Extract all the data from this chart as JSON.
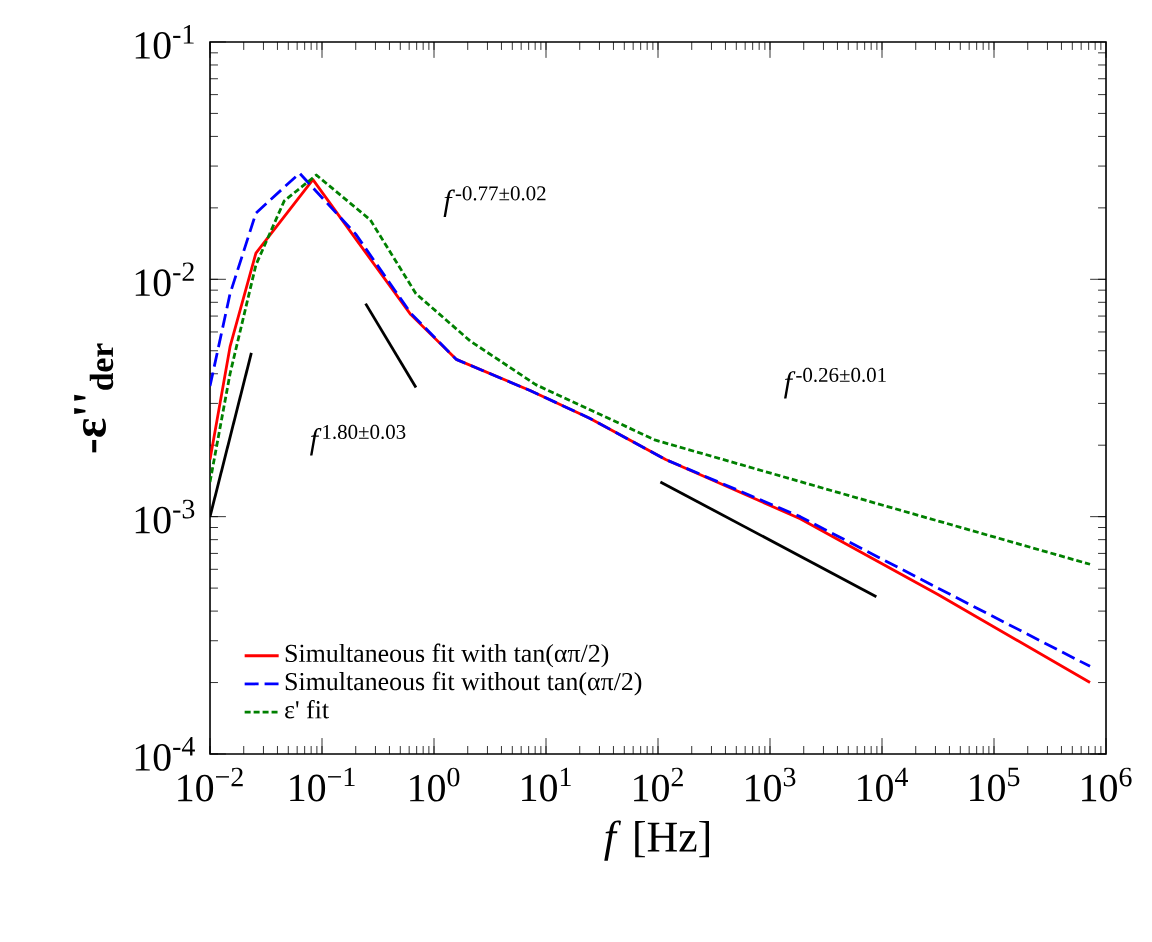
{
  "chart_data": {
    "type": "line",
    "xlabel": "*f* [Hz]",
    "ylabel": "-ε''$_{der}$",
    "log": "xy",
    "xlim": [
      0.01,
      1000000
    ],
    "ylim": [
      0.0001,
      0.1
    ],
    "xticks": [
      {
        "value": 0.01,
        "label": "10$^{−2}$"
      },
      {
        "value": 0.1,
        "label": "10$^{−1}$"
      },
      {
        "value": 1,
        "label": "10$^{0}$"
      },
      {
        "value": 10,
        "label": "10$^{1}$"
      },
      {
        "value": 100,
        "label": "10$^{2}$"
      },
      {
        "value": 1000,
        "label": "10$^{3}$"
      },
      {
        "value": 10000,
        "label": "10$^{4}$"
      },
      {
        "value": 100000,
        "label": "10$^{5}$"
      },
      {
        "value": 1000000,
        "label": "10$^{6}$"
      }
    ],
    "yticks": [
      {
        "value": 0.0001,
        "label": "10$^{-4}$"
      },
      {
        "value": 0.001,
        "label": "10$^{-3}$"
      },
      {
        "value": 0.01,
        "label": "10$^{-2}$"
      },
      {
        "value": 0.1,
        "label": "10$^{-1}$"
      }
    ],
    "legend": "bottom left",
    "series": [
      {
        "name": "Simultaneous fit with tan(απ/2)",
        "color": "#ff0000",
        "line_style": "solid",
        "x": [
          0.01,
          0.0151,
          0.0257,
          0.083,
          0.2,
          0.62,
          1.58,
          7.2,
          24.5,
          117,
          1860,
          31600,
          720000
        ],
        "values": [
          0.00174,
          0.0052,
          0.0129,
          0.0263,
          0.0148,
          0.0071,
          0.0046,
          0.0034,
          0.0026,
          0.00174,
          0.00098,
          0.00047,
          0.0002
        ]
      },
      {
        "name": "Simultaneous fit without tan(απ/2)",
        "color": "#0000ff",
        "line_style": "dashed",
        "x": [
          0.01,
          0.0151,
          0.0257,
          0.063,
          0.2,
          0.62,
          1.58,
          7.2,
          24.5,
          117,
          1860,
          31600,
          720000
        ],
        "values": [
          0.00355,
          0.0087,
          0.019,
          0.028,
          0.0155,
          0.0072,
          0.0046,
          0.0034,
          0.0026,
          0.00174,
          0.001,
          0.0005,
          0.000234
        ]
      },
      {
        "name": "ε' fit",
        "color": "#008000",
        "line_style": "dotted",
        "x": [
          0.01,
          0.0151,
          0.0257,
          0.046,
          0.089,
          0.27,
          0.69,
          2.1,
          8.1,
          95,
          7200,
          720000
        ],
        "values": [
          0.0014,
          0.004,
          0.0115,
          0.0214,
          0.0275,
          0.0178,
          0.0087,
          0.0055,
          0.0036,
          0.0021,
          0.00117,
          0.00063
        ]
      },
      {
        "color": "#000000",
        "line_style": "solid",
        "x": [
          0.01,
          0.0234
        ],
        "values": [
          0.001,
          0.0049
        ]
      },
      {
        "color": "#000000",
        "line_style": "solid",
        "x": [
          0.245,
          0.69
        ],
        "values": [
          0.0079,
          0.0035
        ]
      },
      {
        "color": "#000000",
        "line_style": "solid",
        "x": [
          105,
          8900
        ],
        "values": [
          0.0014,
          0.00046
        ]
      }
    ],
    "annotations": [
      "*f*$^{1.80±0.03}$",
      "*f*$^{-0.77±0.02}$",
      "*f*$^{-0.26±0.01}$"
    ]
  }
}
